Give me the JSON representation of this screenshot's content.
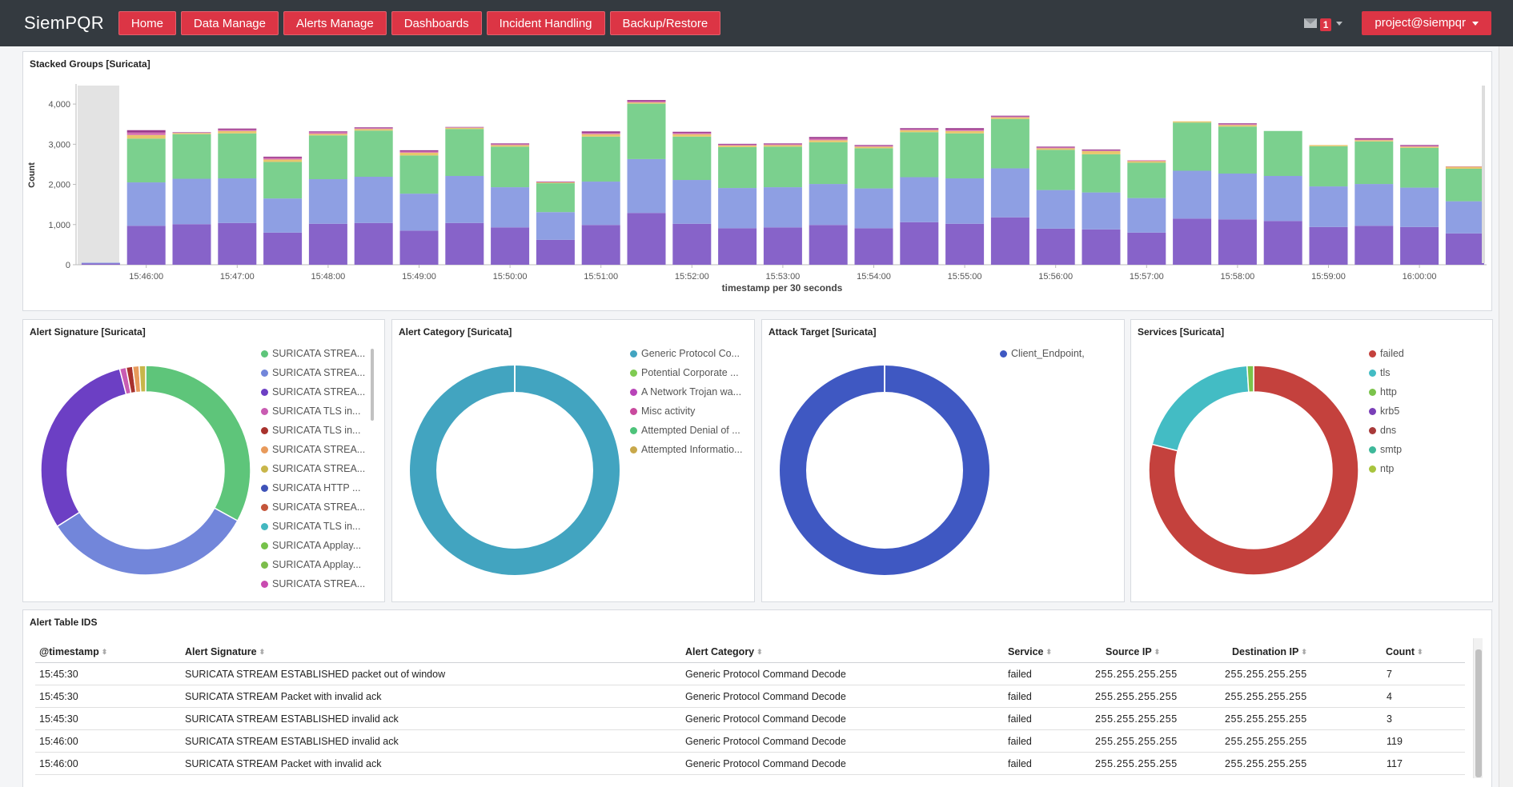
{
  "nav": {
    "brand": "SiemPQR",
    "items": [
      "Home",
      "Data Manage",
      "Alerts Manage",
      "Dashboards",
      "Incident Handling",
      "Backup/Restore"
    ],
    "notification_count": "1",
    "user": "project@siempqr"
  },
  "stacked": {
    "title": "Stacked Groups [Suricata]",
    "ylabel": "Count",
    "xlabel": "timestamp per 30 seconds",
    "colors": [
      "#8763c9",
      "#8e9fe3",
      "#7bd08e",
      "#e8c66d",
      "#d56fb2",
      "#9b3a8e"
    ]
  },
  "chart_data": [
    {
      "type": "bar",
      "stacked": true,
      "title": "Stacked Groups [Suricata]",
      "xlabel": "timestamp per 30 seconds",
      "ylabel": "Count",
      "ylim": [
        0,
        4500
      ],
      "yticks": [
        "0",
        "1,000",
        "2,000",
        "3,000",
        "4,000"
      ],
      "xticks": [
        "15:46:00",
        "15:47:00",
        "15:48:00",
        "15:49:00",
        "15:50:00",
        "15:51:00",
        "15:52:00",
        "15:53:00",
        "15:54:00",
        "15:55:00",
        "15:56:00",
        "15:57:00",
        "15:58:00",
        "15:59:00",
        "16:00:00"
      ],
      "x": [
        "15:45:30",
        "15:46:00",
        "15:46:30",
        "15:47:00",
        "15:47:30",
        "15:48:00",
        "15:48:30",
        "15:49:00",
        "15:49:30",
        "15:50:00",
        "15:50:30",
        "15:51:00",
        "15:51:30",
        "15:52:00",
        "15:52:30",
        "15:53:00",
        "15:53:30",
        "15:54:00",
        "15:54:30",
        "15:55:00",
        "15:55:30",
        "15:56:00",
        "15:56:30",
        "15:57:00",
        "15:57:30",
        "15:58:00",
        "15:58:30",
        "15:59:00",
        "15:59:30",
        "16:00:00",
        "16:00:30",
        "16:01:00"
      ],
      "series": [
        {
          "values": [
            30,
            970,
            1010,
            1040,
            800,
            1020,
            1040,
            850,
            1040,
            930,
            620,
            990,
            1290,
            1020,
            910,
            930,
            990,
            910,
            1060,
            1020,
            1180,
            900,
            880,
            800,
            1150,
            1130,
            1090,
            940,
            970,
            940,
            780,
            0
          ]
        },
        {
          "values": [
            20,
            1080,
            1130,
            1110,
            850,
            1110,
            1150,
            920,
            1170,
            1000,
            690,
            1080,
            1340,
            1090,
            1000,
            1000,
            1020,
            990,
            1120,
            1130,
            1220,
            960,
            920,
            860,
            1190,
            1140,
            1120,
            1010,
            1040,
            980,
            800,
            0
          ]
        },
        {
          "values": [
            0,
            1090,
            1110,
            1120,
            910,
            1090,
            1150,
            950,
            1170,
            1010,
            720,
            1120,
            1380,
            1080,
            1020,
            1010,
            1040,
            1000,
            1120,
            1120,
            1230,
            1000,
            950,
            880,
            1200,
            1170,
            1120,
            1000,
            1060,
            990,
            810,
            0
          ]
        },
        {
          "values": [
            0,
            90,
            30,
            60,
            60,
            40,
            40,
            70,
            30,
            40,
            20,
            60,
            30,
            60,
            40,
            40,
            50,
            40,
            50,
            60,
            40,
            40,
            80,
            40,
            30,
            40,
            0,
            30,
            30,
            30,
            50,
            0
          ]
        },
        {
          "values": [
            0,
            60,
            10,
            30,
            40,
            40,
            20,
            30,
            10,
            20,
            10,
            30,
            30,
            30,
            20,
            20,
            40,
            20,
            20,
            30,
            20,
            20,
            20,
            20,
            0,
            20,
            0,
            0,
            20,
            20,
            10,
            0
          ]
        },
        {
          "values": [
            0,
            60,
            10,
            30,
            30,
            20,
            20,
            30,
            10,
            20,
            10,
            40,
            30,
            30,
            20,
            20,
            40,
            20,
            30,
            40,
            20,
            20,
            20,
            0,
            0,
            20,
            0,
            0,
            30,
            20,
            0,
            0
          ]
        }
      ]
    },
    {
      "type": "pie",
      "title": "Alert Signature [Suricata]",
      "labels": [
        "SURICATA STREA...",
        "SURICATA STREA...",
        "SURICATA STREA...",
        "SURICATA TLS in...",
        "SURICATA TLS in...",
        "SURICATA STREA...",
        "SURICATA STREA...",
        "SURICATA HTTP ...",
        "SURICATA STREA...",
        "SURICATA TLS in...",
        "SURICATA Applay...",
        "SURICATA Applay...",
        "SURICATA STREA..."
      ],
      "values": [
        33,
        33,
        30,
        1,
        1,
        1,
        1,
        0,
        0,
        0,
        0,
        0,
        0
      ],
      "colors": [
        "#5ec57a",
        "#7286da",
        "#6c3fc4",
        "#c95cb2",
        "#a8322d",
        "#e89a5b",
        "#c8b64a",
        "#3e52b8",
        "#c4553a",
        "#43b8c0",
        "#76c24a",
        "#7cbd4b",
        "#c94bb0"
      ]
    },
    {
      "type": "pie",
      "title": "Alert Category [Suricata]",
      "labels": [
        "Generic Protocol Co...",
        "Potential Corporate ...",
        "A Network Trojan wa...",
        "Misc activity",
        "Attempted Denial of ...",
        "Attempted Informatio..."
      ],
      "values": [
        100,
        0,
        0,
        0,
        0,
        0
      ],
      "colors": [
        "#42a4c0",
        "#7fcb52",
        "#b844b8",
        "#c94a9e",
        "#4dc37a",
        "#c8a84a"
      ]
    },
    {
      "type": "pie",
      "title": "Attack Target [Suricata]",
      "labels": [
        "Client_Endpoint,"
      ],
      "values": [
        100
      ],
      "colors": [
        "#3f58c2"
      ]
    },
    {
      "type": "pie",
      "title": "Services [Suricata]",
      "labels": [
        "failed",
        "tls",
        "http",
        "krb5",
        "dns",
        "smtp",
        "ntp"
      ],
      "values": [
        79,
        20,
        1,
        0,
        0,
        0,
        0
      ],
      "colors": [
        "#c4413d",
        "#43bcc4",
        "#7bc34b",
        "#7a3fb8",
        "#a83a3a",
        "#3eb89a",
        "#a8c43e"
      ]
    }
  ],
  "table": {
    "title": "Alert Table IDS",
    "columns": [
      "@timestamp",
      "Alert Signature",
      "Alert Category",
      "Service",
      "Source IP",
      "Destination IP",
      "Count"
    ],
    "rows": [
      [
        "15:45:30",
        "SURICATA STREAM ESTABLISHED packet out of window",
        "Generic Protocol Command Decode",
        "failed",
        "255.255.255.255",
        "255.255.255.255",
        "7"
      ],
      [
        "15:45:30",
        "SURICATA STREAM Packet with invalid ack",
        "Generic Protocol Command Decode",
        "failed",
        "255.255.255.255",
        "255.255.255.255",
        "4"
      ],
      [
        "15:45:30",
        "SURICATA STREAM ESTABLISHED invalid ack",
        "Generic Protocol Command Decode",
        "failed",
        "255.255.255.255",
        "255.255.255.255",
        "3"
      ],
      [
        "15:46:00",
        "SURICATA STREAM ESTABLISHED invalid ack",
        "Generic Protocol Command Decode",
        "failed",
        "255.255.255.255",
        "255.255.255.255",
        "119"
      ],
      [
        "15:46:00",
        "SURICATA STREAM Packet with invalid ack",
        "Generic Protocol Command Decode",
        "failed",
        "255.255.255.255",
        "255.255.255.255",
        "117"
      ]
    ]
  }
}
